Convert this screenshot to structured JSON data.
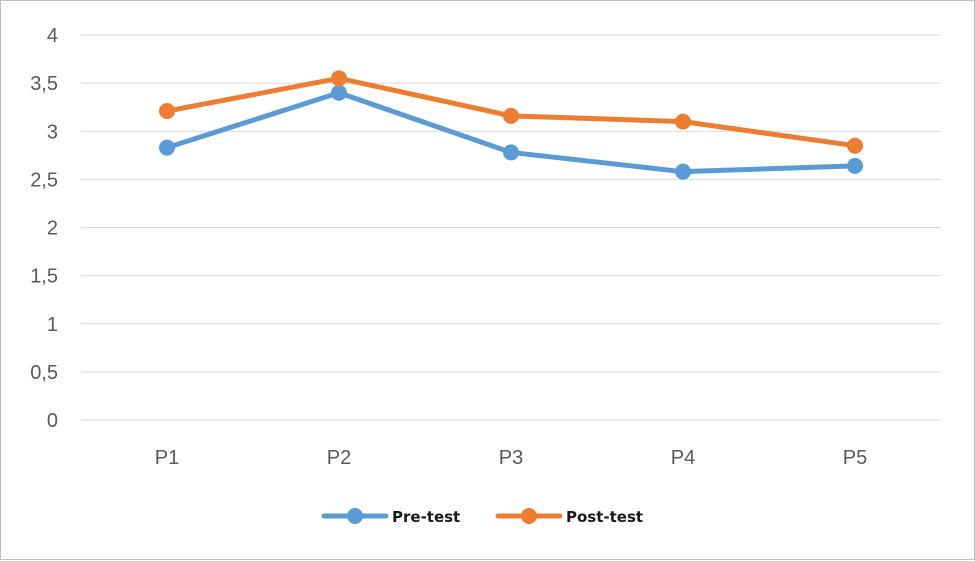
{
  "chart_data": {
    "type": "line",
    "categories": [
      "P1",
      "P2",
      "P3",
      "P4",
      "P5"
    ],
    "series": [
      {
        "name": "Pre-test",
        "color": "#5b9bd5",
        "values": [
          2.83,
          3.4,
          2.78,
          2.58,
          2.64
        ]
      },
      {
        "name": "Post-test",
        "color": "#ed7d31",
        "values": [
          3.21,
          3.55,
          3.16,
          3.1,
          2.85
        ]
      }
    ],
    "y_ticks": [
      "0",
      "0,5",
      "1",
      "1,5",
      "2",
      "2,5",
      "3",
      "3,5",
      "4"
    ],
    "ylim": [
      0,
      4
    ],
    "grid": true,
    "legend_position": "bottom",
    "title": "",
    "xlabel": "",
    "ylabel": ""
  }
}
